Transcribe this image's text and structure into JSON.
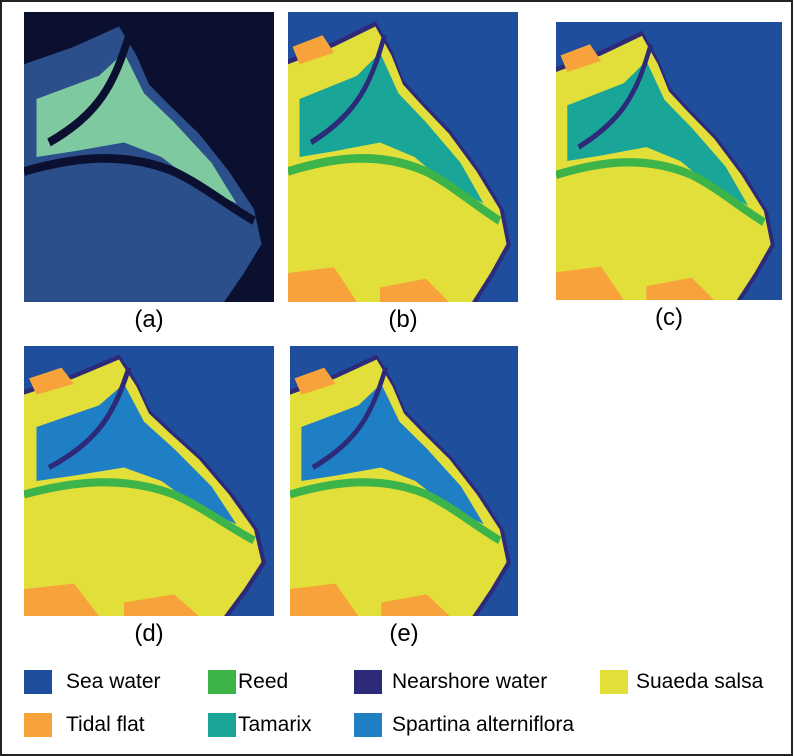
{
  "panels": [
    {
      "label": "(a)"
    },
    {
      "label": "(b)"
    },
    {
      "label": "(c)"
    },
    {
      "label": "(d)"
    },
    {
      "label": "(e)"
    }
  ],
  "legend": [
    {
      "label": "Sea water",
      "color": "#1f4e9c"
    },
    {
      "label": "Reed",
      "color": "#3cb44a"
    },
    {
      "label": "Nearshore water",
      "color": "#2e2a7a"
    },
    {
      "label": "Suaeda salsa",
      "color": "#e2df3a"
    },
    {
      "label": "Tidal flat",
      "color": "#f7a23b"
    },
    {
      "label": "Tamarix",
      "color": "#19a598"
    },
    {
      "label": "Spartina alterniflora",
      "color": "#1f7fc4"
    }
  ]
}
